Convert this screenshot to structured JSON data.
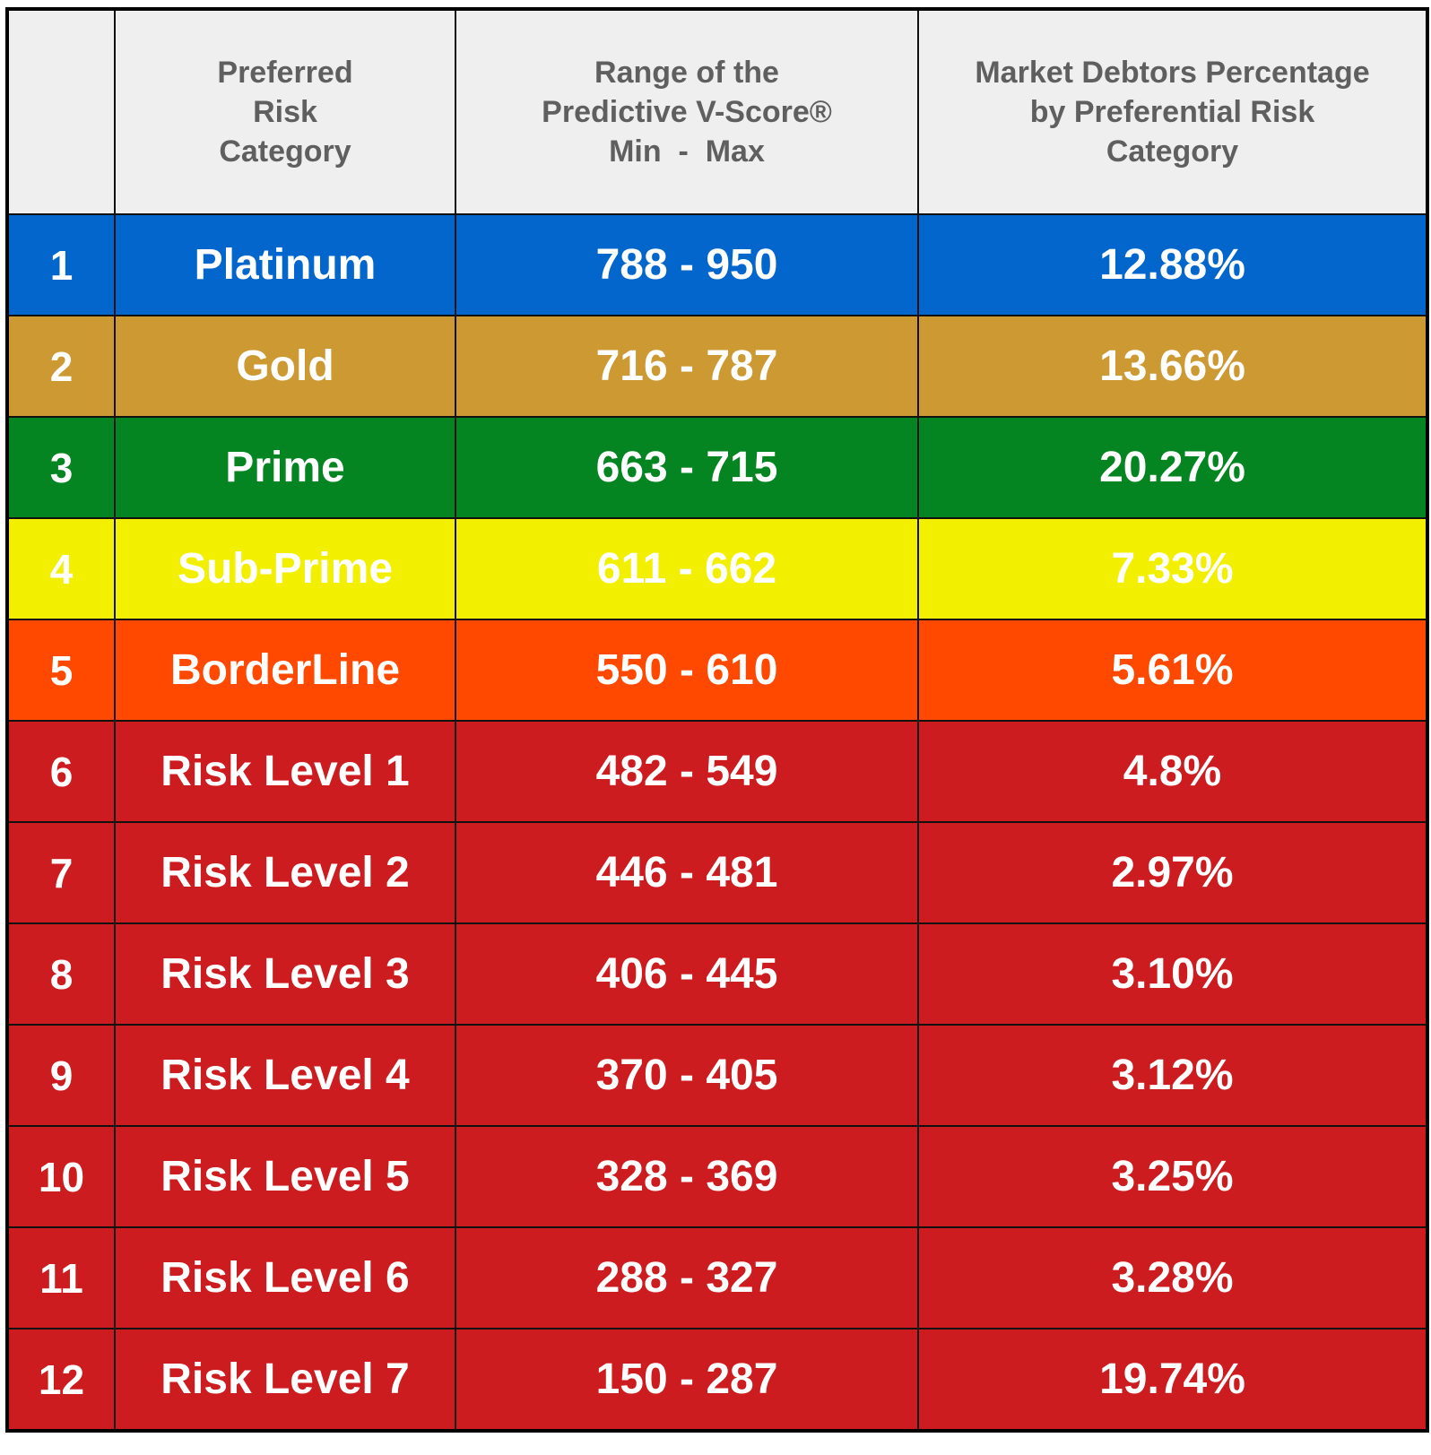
{
  "header": {
    "col_index": "",
    "col_category": "Preferred\nRisk\nCategory",
    "col_category_lines": [
      "Preferred",
      "Risk",
      "Category"
    ],
    "col_range_lines": [
      "Range of the",
      "Predictive V-Score®",
      "Min  -  Max"
    ],
    "col_percentage_lines": [
      "Market Debtors Percentage",
      "by Preferential Risk",
      "Category"
    ]
  },
  "colors": {
    "header_bg": "#efefef",
    "header_text": "#5f5f5f",
    "platinum": "#0366cc",
    "gold": "#cc9933",
    "prime": "#048521",
    "sub_prime": "#f2f000",
    "borderline": "#ff4900",
    "risk": "#cc1c1f"
  },
  "rows": [
    {
      "index": "1",
      "category": "Platinum",
      "range": "788 - 950",
      "percentage": "12.88%",
      "bg": "#0366cc",
      "fg": "#ffffff"
    },
    {
      "index": "2",
      "category": "Gold",
      "range": "716 - 787",
      "percentage": "13.66%",
      "bg": "#cc9933",
      "fg": "#ffffff"
    },
    {
      "index": "3",
      "category": "Prime",
      "range": "663 - 715",
      "percentage": "20.27%",
      "bg": "#048521",
      "fg": "#ffffff"
    },
    {
      "index": "4",
      "category": "Sub-Prime",
      "range": "611 - 662",
      "percentage": "7.33%",
      "bg": "#f2f000",
      "fg": "#000000"
    },
    {
      "index": "5",
      "category": "BorderLine",
      "range": "550 - 610",
      "percentage": "5.61%",
      "bg": "#ff4900",
      "fg": "#ffffff"
    },
    {
      "index": "6",
      "category": "Risk Level 1",
      "range": "482 - 549",
      "percentage": "4.8%",
      "bg": "#cc1c1f",
      "fg": "#ffffff"
    },
    {
      "index": "7",
      "category": "Risk Level 2",
      "range": "446 - 481",
      "percentage": "2.97%",
      "bg": "#cc1c1f",
      "fg": "#ffffff"
    },
    {
      "index": "8",
      "category": "Risk Level 3",
      "range": "406 - 445",
      "percentage": "3.10%",
      "bg": "#cc1c1f",
      "fg": "#ffffff"
    },
    {
      "index": "9",
      "category": "Risk Level 4",
      "range": "370 - 405",
      "percentage": "3.12%",
      "bg": "#cc1c1f",
      "fg": "#ffffff"
    },
    {
      "index": "10",
      "category": "Risk Level 5",
      "range": "328 - 369",
      "percentage": "3.25%",
      "bg": "#cc1c1f",
      "fg": "#ffffff"
    },
    {
      "index": "11",
      "category": "Risk Level 6",
      "range": "288 - 327",
      "percentage": "3.28%",
      "bg": "#cc1c1f",
      "fg": "#ffffff"
    },
    {
      "index": "12",
      "category": "Risk Level 7",
      "range": "150 - 287",
      "percentage": "19.74%",
      "bg": "#cc1c1f",
      "fg": "#ffffff"
    }
  ]
}
